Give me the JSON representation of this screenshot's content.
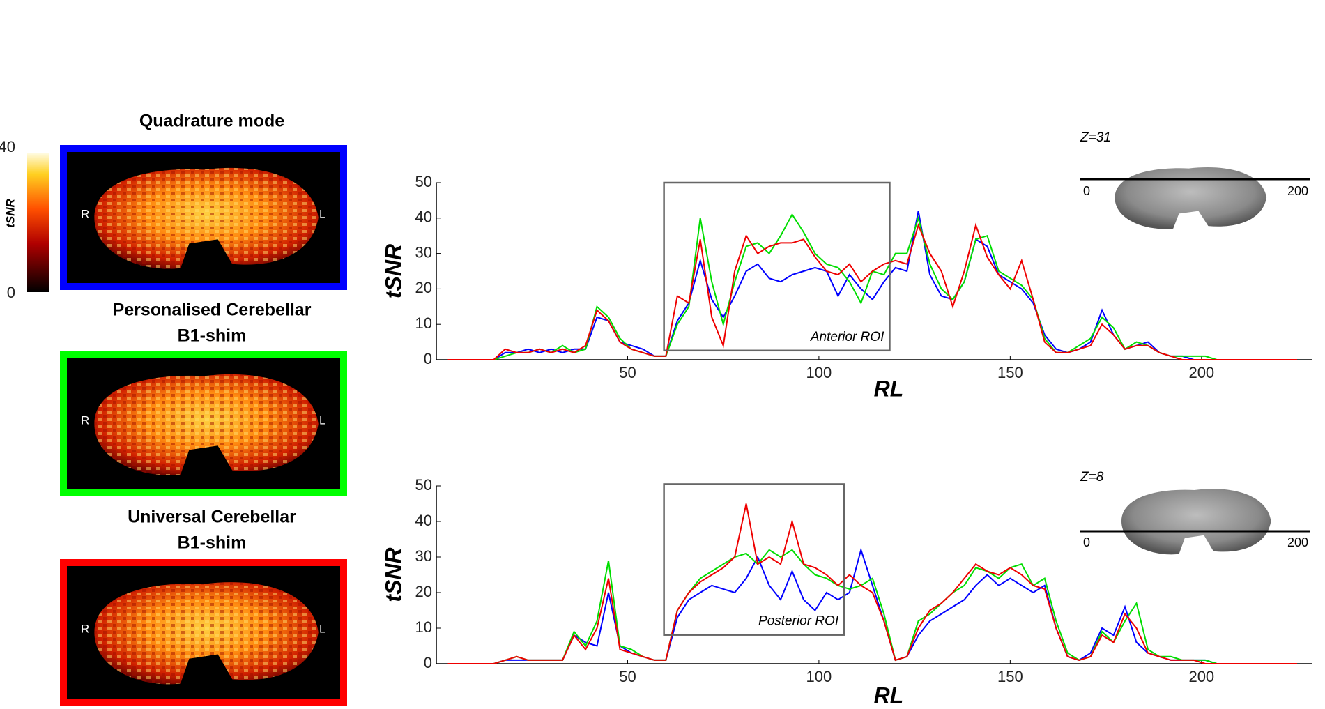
{
  "colorbar": {
    "label": "tSNR",
    "ticks": [
      0,
      40
    ]
  },
  "panels": [
    {
      "title": [
        "Quadrature mode"
      ],
      "color": "#0000ff",
      "left": "R",
      "right": "L"
    },
    {
      "title": [
        "Personalised Cerebellar",
        "B1-shim"
      ],
      "color": "#00ff00",
      "left": "R",
      "right": "L"
    },
    {
      "title": [
        "Universal Cerebellar",
        "B1-shim"
      ],
      "color": "#ff0000",
      "left": "R",
      "right": "L"
    }
  ],
  "chart_data": [
    {
      "type": "line",
      "ylabel": "tSNR",
      "xlabel": "RL",
      "xlim": [
        0,
        229
      ],
      "ylim": [
        0,
        50
      ],
      "xticks": [
        50,
        100,
        150,
        200
      ],
      "yticks": [
        0,
        10,
        20,
        30,
        40,
        50
      ],
      "roi": {
        "label": "Anterior ROI",
        "x": [
          59.5,
          118.5
        ],
        "y": [
          2.6,
          50
        ]
      },
      "inset": {
        "label": "Z=31",
        "ticks": [
          0,
          200
        ]
      },
      "x": [
        3,
        6,
        9,
        12,
        15,
        18,
        21,
        24,
        27,
        30,
        33,
        36,
        39,
        42,
        45,
        48,
        51,
        54,
        57,
        60,
        63,
        66,
        69,
        72,
        75,
        78,
        81,
        84,
        87,
        90,
        93,
        96,
        99,
        102,
        105,
        108,
        111,
        114,
        117,
        120,
        123,
        126,
        129,
        132,
        135,
        138,
        141,
        144,
        147,
        150,
        153,
        156,
        159,
        162,
        165,
        168,
        171,
        174,
        177,
        180,
        183,
        186,
        189,
        192,
        195,
        198,
        201,
        204,
        207,
        210,
        213,
        216,
        219,
        222,
        225
      ],
      "series": [
        {
          "color": "#0000ff",
          "values": [
            0,
            0,
            0,
            0,
            0,
            2,
            2,
            3,
            2,
            3,
            2,
            3,
            3,
            12,
            11,
            5,
            4,
            3,
            1,
            1,
            11,
            16,
            28,
            17,
            12,
            18,
            25,
            27,
            23,
            22,
            24,
            25,
            26,
            25,
            18,
            24,
            20,
            17,
            22,
            26,
            25,
            42,
            24,
            18,
            17,
            22,
            34,
            32,
            24,
            22,
            20,
            16,
            7,
            3,
            2,
            3,
            5,
            14,
            7,
            3,
            4,
            5,
            2,
            1,
            1,
            0,
            0,
            0,
            0,
            0,
            0,
            0,
            0,
            0,
            0
          ]
        },
        {
          "color": "#00dd00",
          "values": [
            0,
            0,
            0,
            0,
            0,
            1,
            2,
            2,
            3,
            2,
            4,
            2,
            3,
            15,
            12,
            6,
            3,
            2,
            1,
            1,
            10,
            15,
            40,
            22,
            10,
            22,
            32,
            33,
            30,
            35,
            41,
            36,
            30,
            27,
            26,
            22,
            16,
            25,
            24,
            30,
            30,
            40,
            27,
            20,
            17,
            22,
            34,
            35,
            25,
            23,
            21,
            17,
            6,
            2,
            2,
            4,
            6,
            12,
            9,
            3,
            5,
            4,
            2,
            1,
            1,
            1,
            1,
            0,
            0,
            0,
            0,
            0,
            0,
            0,
            0
          ]
        },
        {
          "color": "#ee0000",
          "values": [
            0,
            0,
            0,
            0,
            0,
            3,
            2,
            2,
            3,
            2,
            3,
            2,
            4,
            14,
            11,
            5,
            3,
            2,
            1,
            1,
            18,
            16,
            34,
            12,
            4,
            25,
            35,
            30,
            32,
            33,
            33,
            34,
            29,
            25,
            24,
            27,
            22,
            25,
            27,
            28,
            27,
            38,
            30,
            25,
            15,
            25,
            38,
            29,
            24,
            20,
            28,
            17,
            5,
            2,
            2,
            3,
            4,
            10,
            7,
            3,
            4,
            4,
            2,
            1,
            0,
            0,
            0,
            0,
            0,
            0,
            0,
            0,
            0,
            0,
            0
          ]
        }
      ]
    },
    {
      "type": "line",
      "ylabel": "tSNR",
      "xlabel": "RL",
      "xlim": [
        0,
        229
      ],
      "ylim": [
        0,
        50
      ],
      "xticks": [
        50,
        100,
        150,
        200
      ],
      "yticks": [
        0,
        10,
        20,
        30,
        40,
        50
      ],
      "roi": {
        "label": "Posterior ROI",
        "x": [
          59.5,
          106.6
        ],
        "y": [
          8.1,
          50.5
        ]
      },
      "inset": {
        "label": "Z=8",
        "ticks": [
          0,
          200
        ]
      },
      "x": [
        3,
        6,
        9,
        12,
        15,
        18,
        21,
        24,
        27,
        30,
        33,
        36,
        39,
        42,
        45,
        48,
        51,
        54,
        57,
        60,
        63,
        66,
        69,
        72,
        75,
        78,
        81,
        84,
        87,
        90,
        93,
        96,
        99,
        102,
        105,
        108,
        111,
        114,
        117,
        120,
        123,
        126,
        129,
        132,
        135,
        138,
        141,
        144,
        147,
        150,
        153,
        156,
        159,
        162,
        165,
        168,
        171,
        174,
        177,
        180,
        183,
        186,
        189,
        192,
        195,
        198,
        201,
        204,
        207,
        210,
        213,
        216,
        219,
        222,
        225
      ],
      "series": [
        {
          "color": "#0000ff",
          "values": [
            0,
            0,
            0,
            0,
            0,
            1,
            1,
            1,
            1,
            1,
            1,
            8,
            6,
            5,
            20,
            5,
            3,
            2,
            1,
            1,
            13,
            18,
            20,
            22,
            21,
            20,
            24,
            30,
            22,
            18,
            26,
            18,
            15,
            20,
            18,
            20,
            32,
            22,
            12,
            1,
            2,
            8,
            12,
            14,
            16,
            18,
            22,
            25,
            22,
            24,
            22,
            20,
            22,
            10,
            2,
            1,
            3,
            10,
            8,
            16,
            6,
            3,
            2,
            1,
            1,
            1,
            1,
            0,
            0,
            0,
            0,
            0,
            0,
            0,
            0
          ]
        },
        {
          "color": "#00dd00",
          "values": [
            0,
            0,
            0,
            0,
            0,
            1,
            2,
            1,
            1,
            1,
            1,
            9,
            5,
            12,
            29,
            5,
            4,
            2,
            1,
            1,
            15,
            20,
            24,
            26,
            28,
            30,
            31,
            28,
            32,
            30,
            32,
            28,
            25,
            24,
            22,
            21,
            22,
            24,
            14,
            1,
            2,
            12,
            14,
            17,
            20,
            22,
            27,
            26,
            24,
            27,
            28,
            22,
            24,
            12,
            3,
            1,
            2,
            9,
            6,
            12,
            17,
            4,
            2,
            2,
            1,
            1,
            1,
            0,
            0,
            0,
            0,
            0,
            0,
            0,
            0
          ]
        },
        {
          "color": "#ee0000",
          "values": [
            0,
            0,
            0,
            0,
            0,
            1,
            2,
            1,
            1,
            1,
            1,
            8,
            4,
            10,
            24,
            4,
            3,
            2,
            1,
            1,
            15,
            20,
            23,
            25,
            27,
            30,
            45,
            28,
            30,
            28,
            40,
            28,
            27,
            25,
            22,
            25,
            22,
            20,
            12,
            1,
            2,
            10,
            15,
            17,
            20,
            24,
            28,
            26,
            25,
            27,
            25,
            22,
            21,
            10,
            2,
            1,
            2,
            8,
            6,
            14,
            10,
            3,
            2,
            1,
            1,
            1,
            0,
            0,
            0,
            0,
            0,
            0,
            0,
            0,
            0
          ]
        }
      ]
    }
  ]
}
